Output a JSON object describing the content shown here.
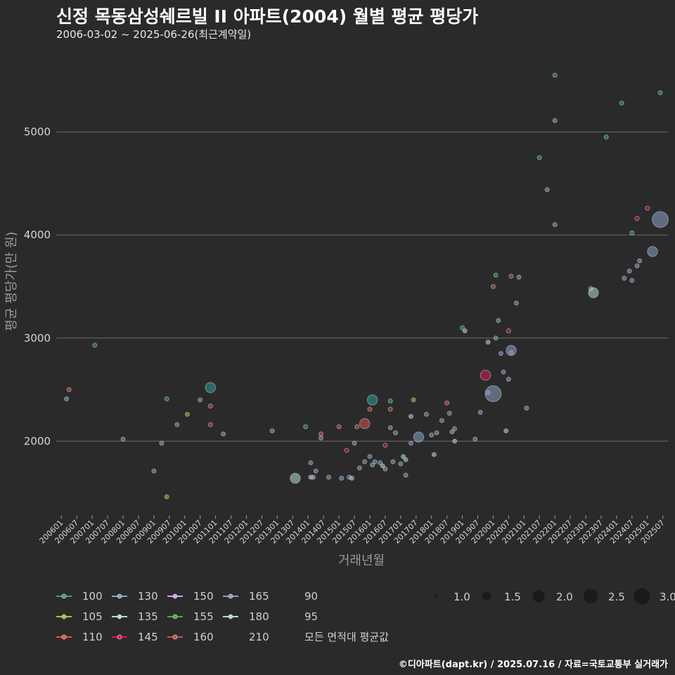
{
  "header": {
    "title": "신정 목동삼성쉐르빌 II  아파트(2004) 월별 평균 평당가",
    "subtitle": "2006-03-02 ~ 2025-06-26(최근계약일)"
  },
  "footer": {
    "text": "©디아파트(dapt.kr) / 2025.07.16 / 자료=국토교통부 실거래가"
  },
  "chart_data": {
    "type": "scatter",
    "title": "신정 목동삼성쉐르빌 II  아파트(2004) 월별 평균 평당가",
    "subtitle": "2006-03-02 ~ 2025-06-26(최근계약일)",
    "xlabel": "거래년월",
    "ylabel": "평균 평당가(만 원)",
    "xlim": [
      "2005-11",
      "2025-09"
    ],
    "ylim": [
      1300,
      5700
    ],
    "yticks": [
      2000,
      3000,
      4000,
      5000
    ],
    "xticks": [
      "200601",
      "200607",
      "200701",
      "200707",
      "200801",
      "200807",
      "200901",
      "200907",
      "201001",
      "201007",
      "201101",
      "201107",
      "201201",
      "201207",
      "201301",
      "201307",
      "201401",
      "201407",
      "201501",
      "201507",
      "201601",
      "201607",
      "201701",
      "201707",
      "201801",
      "201807",
      "201901",
      "201907",
      "202001",
      "202007",
      "202101",
      "202107",
      "202201",
      "202207",
      "202301",
      "202307",
      "202401",
      "202407",
      "202501",
      "202507"
    ],
    "grid": "horizontal",
    "legend_position": "bottom",
    "size_legend": {
      "values": [
        1.0,
        1.5,
        2.0,
        2.5,
        3.0
      ],
      "labels": [
        "1.0",
        "1.5",
        "2.0",
        "2.5",
        "3.0"
      ]
    },
    "series": [
      {
        "name": "100",
        "color": "#2aa198",
        "points": [
          {
            "x": "2010-11",
            "y": 2520,
            "size": 2.0
          },
          {
            "x": "2016-02",
            "y": 2400,
            "size": 2.0
          }
        ]
      },
      {
        "name": "105",
        "color": "#9acd32",
        "points": [
          {
            "x": "2009-06",
            "y": 1460,
            "size": 1.0
          },
          {
            "x": "2010-02",
            "y": 2260,
            "size": 1.0
          },
          {
            "x": "2017-06",
            "y": 2400,
            "size": 1.0
          },
          {
            "x": "2018-09",
            "y": 2090,
            "size": 1.0
          }
        ]
      },
      {
        "name": "110",
        "color": "#d9534f",
        "points": [
          {
            "x": "2006-04",
            "y": 2500,
            "size": 1.0
          },
          {
            "x": "2010-11",
            "y": 2340,
            "size": 1.0
          },
          {
            "x": "2014-06",
            "y": 2070,
            "size": 1.0
          },
          {
            "x": "2015-01",
            "y": 2140,
            "size": 1.0
          },
          {
            "x": "2015-08",
            "y": 2140,
            "size": 1.0
          },
          {
            "x": "2015-11",
            "y": 2170,
            "size": 2.0
          },
          {
            "x": "2016-01",
            "y": 2310,
            "size": 1.0
          },
          {
            "x": "2016-09",
            "y": 2310,
            "size": 1.0
          },
          {
            "x": "2018-07",
            "y": 2370,
            "size": 1.0
          },
          {
            "x": "2020-01",
            "y": 3500,
            "size": 1.0
          },
          {
            "x": "2020-08",
            "y": 3600,
            "size": 1.0
          }
        ]
      },
      {
        "name": "130",
        "color": "#7fa7d1",
        "points": [
          {
            "x": "2006-03",
            "y": 2410,
            "size": 1.0
          },
          {
            "x": "2009-04",
            "y": 1980,
            "size": 1.0
          },
          {
            "x": "2014-02",
            "y": 1790,
            "size": 1.0
          },
          {
            "x": "2015-07",
            "y": 1980,
            "size": 1.0
          },
          {
            "x": "2016-05",
            "y": 1790,
            "size": 1.0
          },
          {
            "x": "2016-09",
            "y": 2130,
            "size": 1.0
          },
          {
            "x": "2017-08",
            "y": 2040,
            "size": 2.0
          },
          {
            "x": "2019-08",
            "y": 2280,
            "size": 1.0
          },
          {
            "x": "2020-03",
            "y": 3170,
            "size": 1.0
          },
          {
            "x": "2020-08",
            "y": 2860,
            "size": 1.0
          },
          {
            "x": "2020-11",
            "y": 3590,
            "size": 1.0
          },
          {
            "x": "2021-10",
            "y": 4440,
            "size": 1.0
          },
          {
            "x": "2024-04",
            "y": 3580,
            "size": 1.0
          }
        ]
      },
      {
        "name": "135",
        "color": "#b2dfdb",
        "points": [
          {
            "x": "2013-08",
            "y": 1640,
            "size": 2.0
          },
          {
            "x": "2017-03",
            "y": 1820,
            "size": 1.0
          },
          {
            "x": "2019-02",
            "y": 3070,
            "size": 1.0
          },
          {
            "x": "2023-04",
            "y": 3440,
            "size": 2.0
          }
        ]
      },
      {
        "name": "145",
        "color": "#e0115f",
        "points": [
          {
            "x": "2019-10",
            "y": 2640,
            "size": 2.0
          },
          {
            "x": "2020-07",
            "y": 3070,
            "size": 1.0
          },
          {
            "x": "2024-09",
            "y": 4160,
            "size": 1.0
          },
          {
            "x": "2025-01",
            "y": 4260,
            "size": 1.0
          },
          {
            "x": "2015-04",
            "y": 1910,
            "size": 1.0
          },
          {
            "x": "2016-07",
            "y": 1960,
            "size": 1.0
          }
        ]
      },
      {
        "name": "150",
        "color": "#d7a1f9",
        "points": [
          {
            "x": "2014-03",
            "y": 1650,
            "size": 1.0
          }
        ]
      },
      {
        "name": "155",
        "color": "#3cb043",
        "points": [
          {
            "x": "2007-02",
            "y": 2930,
            "size": 1.0
          },
          {
            "x": "2009-06",
            "y": 2410,
            "size": 1.0
          },
          {
            "x": "2013-12",
            "y": 2140,
            "size": 1.0
          },
          {
            "x": "2016-09",
            "y": 2390,
            "size": 1.0
          },
          {
            "x": "2019-01",
            "y": 3100,
            "size": 1.0
          },
          {
            "x": "2020-02",
            "y": 3610,
            "size": 1.0
          },
          {
            "x": "2021-07",
            "y": 4750,
            "size": 1.0
          },
          {
            "x": "2022-01",
            "y": 5550,
            "size": 1.0
          },
          {
            "x": "2023-09",
            "y": 4950,
            "size": 1.0
          },
          {
            "x": "2024-03",
            "y": 5280,
            "size": 1.0
          },
          {
            "x": "2024-07",
            "y": 4020,
            "size": 1.0
          },
          {
            "x": "2025-06",
            "y": 5380,
            "size": 1.0
          }
        ]
      },
      {
        "name": "160",
        "color": "#c0504d",
        "points": [
          {
            "x": "2010-11",
            "y": 2160,
            "size": 1.0
          }
        ]
      },
      {
        "name": "165",
        "color": "#8da0cb",
        "points": [
          {
            "x": "2008-01",
            "y": 2020,
            "size": 1.0
          },
          {
            "x": "2009-01",
            "y": 1710,
            "size": 1.0
          },
          {
            "x": "2009-10",
            "y": 2160,
            "size": 1.0
          },
          {
            "x": "2010-07",
            "y": 2400,
            "size": 1.0
          },
          {
            "x": "2011-04",
            "y": 2070,
            "size": 1.0
          },
          {
            "x": "2012-11",
            "y": 2100,
            "size": 1.0
          },
          {
            "x": "2014-04",
            "y": 1710,
            "size": 1.0
          },
          {
            "x": "2014-06",
            "y": 2030,
            "size": 1.0
          },
          {
            "x": "2014-09",
            "y": 1650,
            "size": 1.0
          },
          {
            "x": "2015-02",
            "y": 1640,
            "size": 1.0
          },
          {
            "x": "2015-05",
            "y": 1650,
            "size": 1.0
          },
          {
            "x": "2015-09",
            "y": 1740,
            "size": 1.0
          },
          {
            "x": "2015-11",
            "y": 1800,
            "size": 1.0
          },
          {
            "x": "2016-01",
            "y": 1850,
            "size": 1.0
          },
          {
            "x": "2016-02",
            "y": 1770,
            "size": 1.0
          },
          {
            "x": "2016-03",
            "y": 1800,
            "size": 1.0
          },
          {
            "x": "2016-07",
            "y": 1730,
            "size": 1.0
          },
          {
            "x": "2016-10",
            "y": 1800,
            "size": 1.0
          },
          {
            "x": "2016-11",
            "y": 2080,
            "size": 1.0
          },
          {
            "x": "2017-01",
            "y": 1780,
            "size": 1.0
          },
          {
            "x": "2017-03",
            "y": 1670,
            "size": 1.0
          },
          {
            "x": "2017-05",
            "y": 1980,
            "size": 1.0
          },
          {
            "x": "2017-11",
            "y": 2260,
            "size": 1.0
          },
          {
            "x": "2018-01",
            "y": 2060,
            "size": 1.0
          },
          {
            "x": "2018-03",
            "y": 2080,
            "size": 1.0
          },
          {
            "x": "2018-05",
            "y": 2200,
            "size": 1.0
          },
          {
            "x": "2018-08",
            "y": 2270,
            "size": 1.0
          },
          {
            "x": "2018-10",
            "y": 2120,
            "size": 1.0
          },
          {
            "x": "2019-06",
            "y": 2020,
            "size": 1.0
          },
          {
            "x": "2019-11",
            "y": 2470,
            "size": 1.0
          },
          {
            "x": "2020-01",
            "y": 2460,
            "size": 3.0
          },
          {
            "x": "2020-02",
            "y": 3000,
            "size": 1.0
          },
          {
            "x": "2020-04",
            "y": 2850,
            "size": 1.0
          },
          {
            "x": "2020-05",
            "y": 2670,
            "size": 1.0
          },
          {
            "x": "2020-07",
            "y": 2600,
            "size": 1.0
          },
          {
            "x": "2020-08",
            "y": 2880,
            "size": 2.0
          },
          {
            "x": "2020-10",
            "y": 3340,
            "size": 1.0
          },
          {
            "x": "2021-02",
            "y": 2320,
            "size": 1.0
          },
          {
            "x": "2022-01",
            "y": 5110,
            "size": 1.0
          },
          {
            "x": "2022-01",
            "y": 4100,
            "size": 1.0
          },
          {
            "x": "2023-03",
            "y": 3480,
            "size": 1.0
          },
          {
            "x": "2024-06",
            "y": 3650,
            "size": 1.0
          },
          {
            "x": "2024-07",
            "y": 3560,
            "size": 1.0
          },
          {
            "x": "2024-09",
            "y": 3700,
            "size": 1.0
          },
          {
            "x": "2024-10",
            "y": 3750,
            "size": 1.0
          },
          {
            "x": "2025-03",
            "y": 3840,
            "size": 2.0
          },
          {
            "x": "2025-06",
            "y": 4150,
            "size": 3.0
          }
        ]
      },
      {
        "name": "180",
        "color": "#a8e6cf",
        "points": [
          {
            "x": "2014-02",
            "y": 1650,
            "size": 1.0
          },
          {
            "x": "2015-06",
            "y": 1640,
            "size": 1.0
          },
          {
            "x": "2016-06",
            "y": 1760,
            "size": 1.0
          },
          {
            "x": "2017-02",
            "y": 1850,
            "size": 1.0
          },
          {
            "x": "2018-02",
            "y": 1870,
            "size": 1.0
          },
          {
            "x": "2018-10",
            "y": 2000,
            "size": 1.0
          },
          {
            "x": "2019-11",
            "y": 2960,
            "size": 1.0
          },
          {
            "x": "2020-06",
            "y": 2100,
            "size": 1.0
          },
          {
            "x": "2017-05",
            "y": 2240,
            "size": 1.0
          }
        ]
      },
      {
        "name": "210",
        "color": "#555555",
        "points": []
      },
      {
        "name": "90",
        "color": "#555555",
        "points": []
      },
      {
        "name": "95",
        "color": "#555555",
        "points": []
      },
      {
        "name": "모든 면적대 평균값",
        "color": "#555555",
        "points": []
      }
    ]
  }
}
